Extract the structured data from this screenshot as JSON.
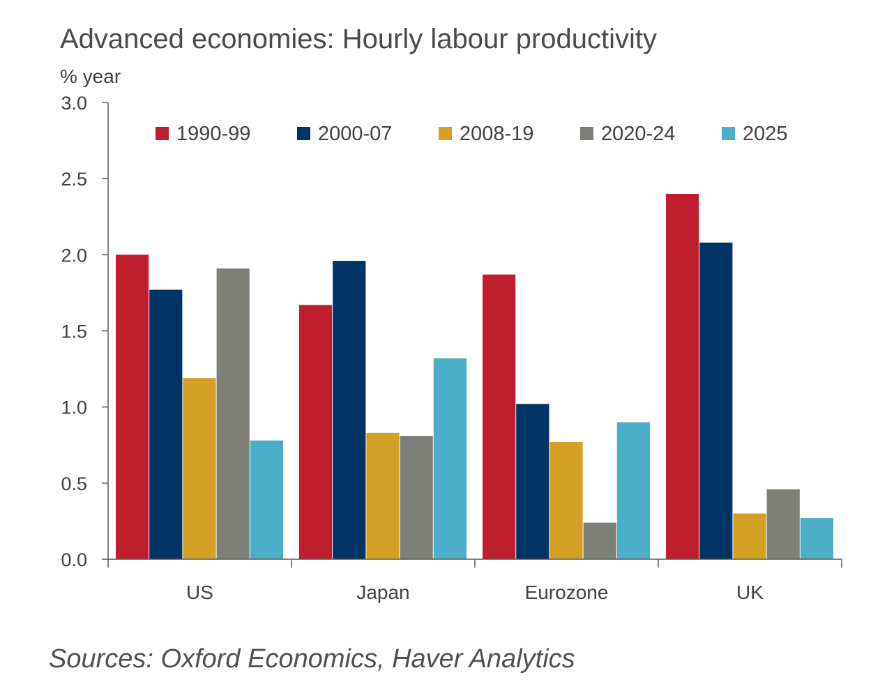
{
  "chart_data": {
    "type": "bar",
    "title": "Advanced economies: Hourly labour productivity",
    "ylabel": "% year",
    "xlabel": "",
    "ylim": [
      0,
      3.0
    ],
    "yticks": [
      "0.0",
      "0.5",
      "1.0",
      "1.5",
      "2.0",
      "2.5",
      "3.0"
    ],
    "ytick_values": [
      0,
      0.5,
      1.0,
      1.5,
      2.0,
      2.5,
      3.0
    ],
    "categories": [
      "US",
      "Japan",
      "Eurozone",
      "UK"
    ],
    "series": [
      {
        "name": "1990-99",
        "color": "#BE1E2D",
        "values": [
          2.0,
          1.67,
          1.87,
          2.4
        ]
      },
      {
        "name": "2000-07",
        "color": "#003366",
        "values": [
          1.77,
          1.96,
          1.02,
          2.08
        ]
      },
      {
        "name": "2008-19",
        "color": "#D4A024",
        "values": [
          1.19,
          0.83,
          0.77,
          0.3
        ]
      },
      {
        "name": "2020-24",
        "color": "#7F7F7A",
        "values": [
          1.91,
          0.81,
          0.24,
          0.46
        ]
      },
      {
        "name": "2025",
        "color": "#4BAFC9",
        "values": [
          0.78,
          1.32,
          0.9,
          0.27
        ]
      }
    ],
    "legend_position": "top",
    "grid": false
  },
  "source": "Sources: Oxford Economics, Haver Analytics"
}
